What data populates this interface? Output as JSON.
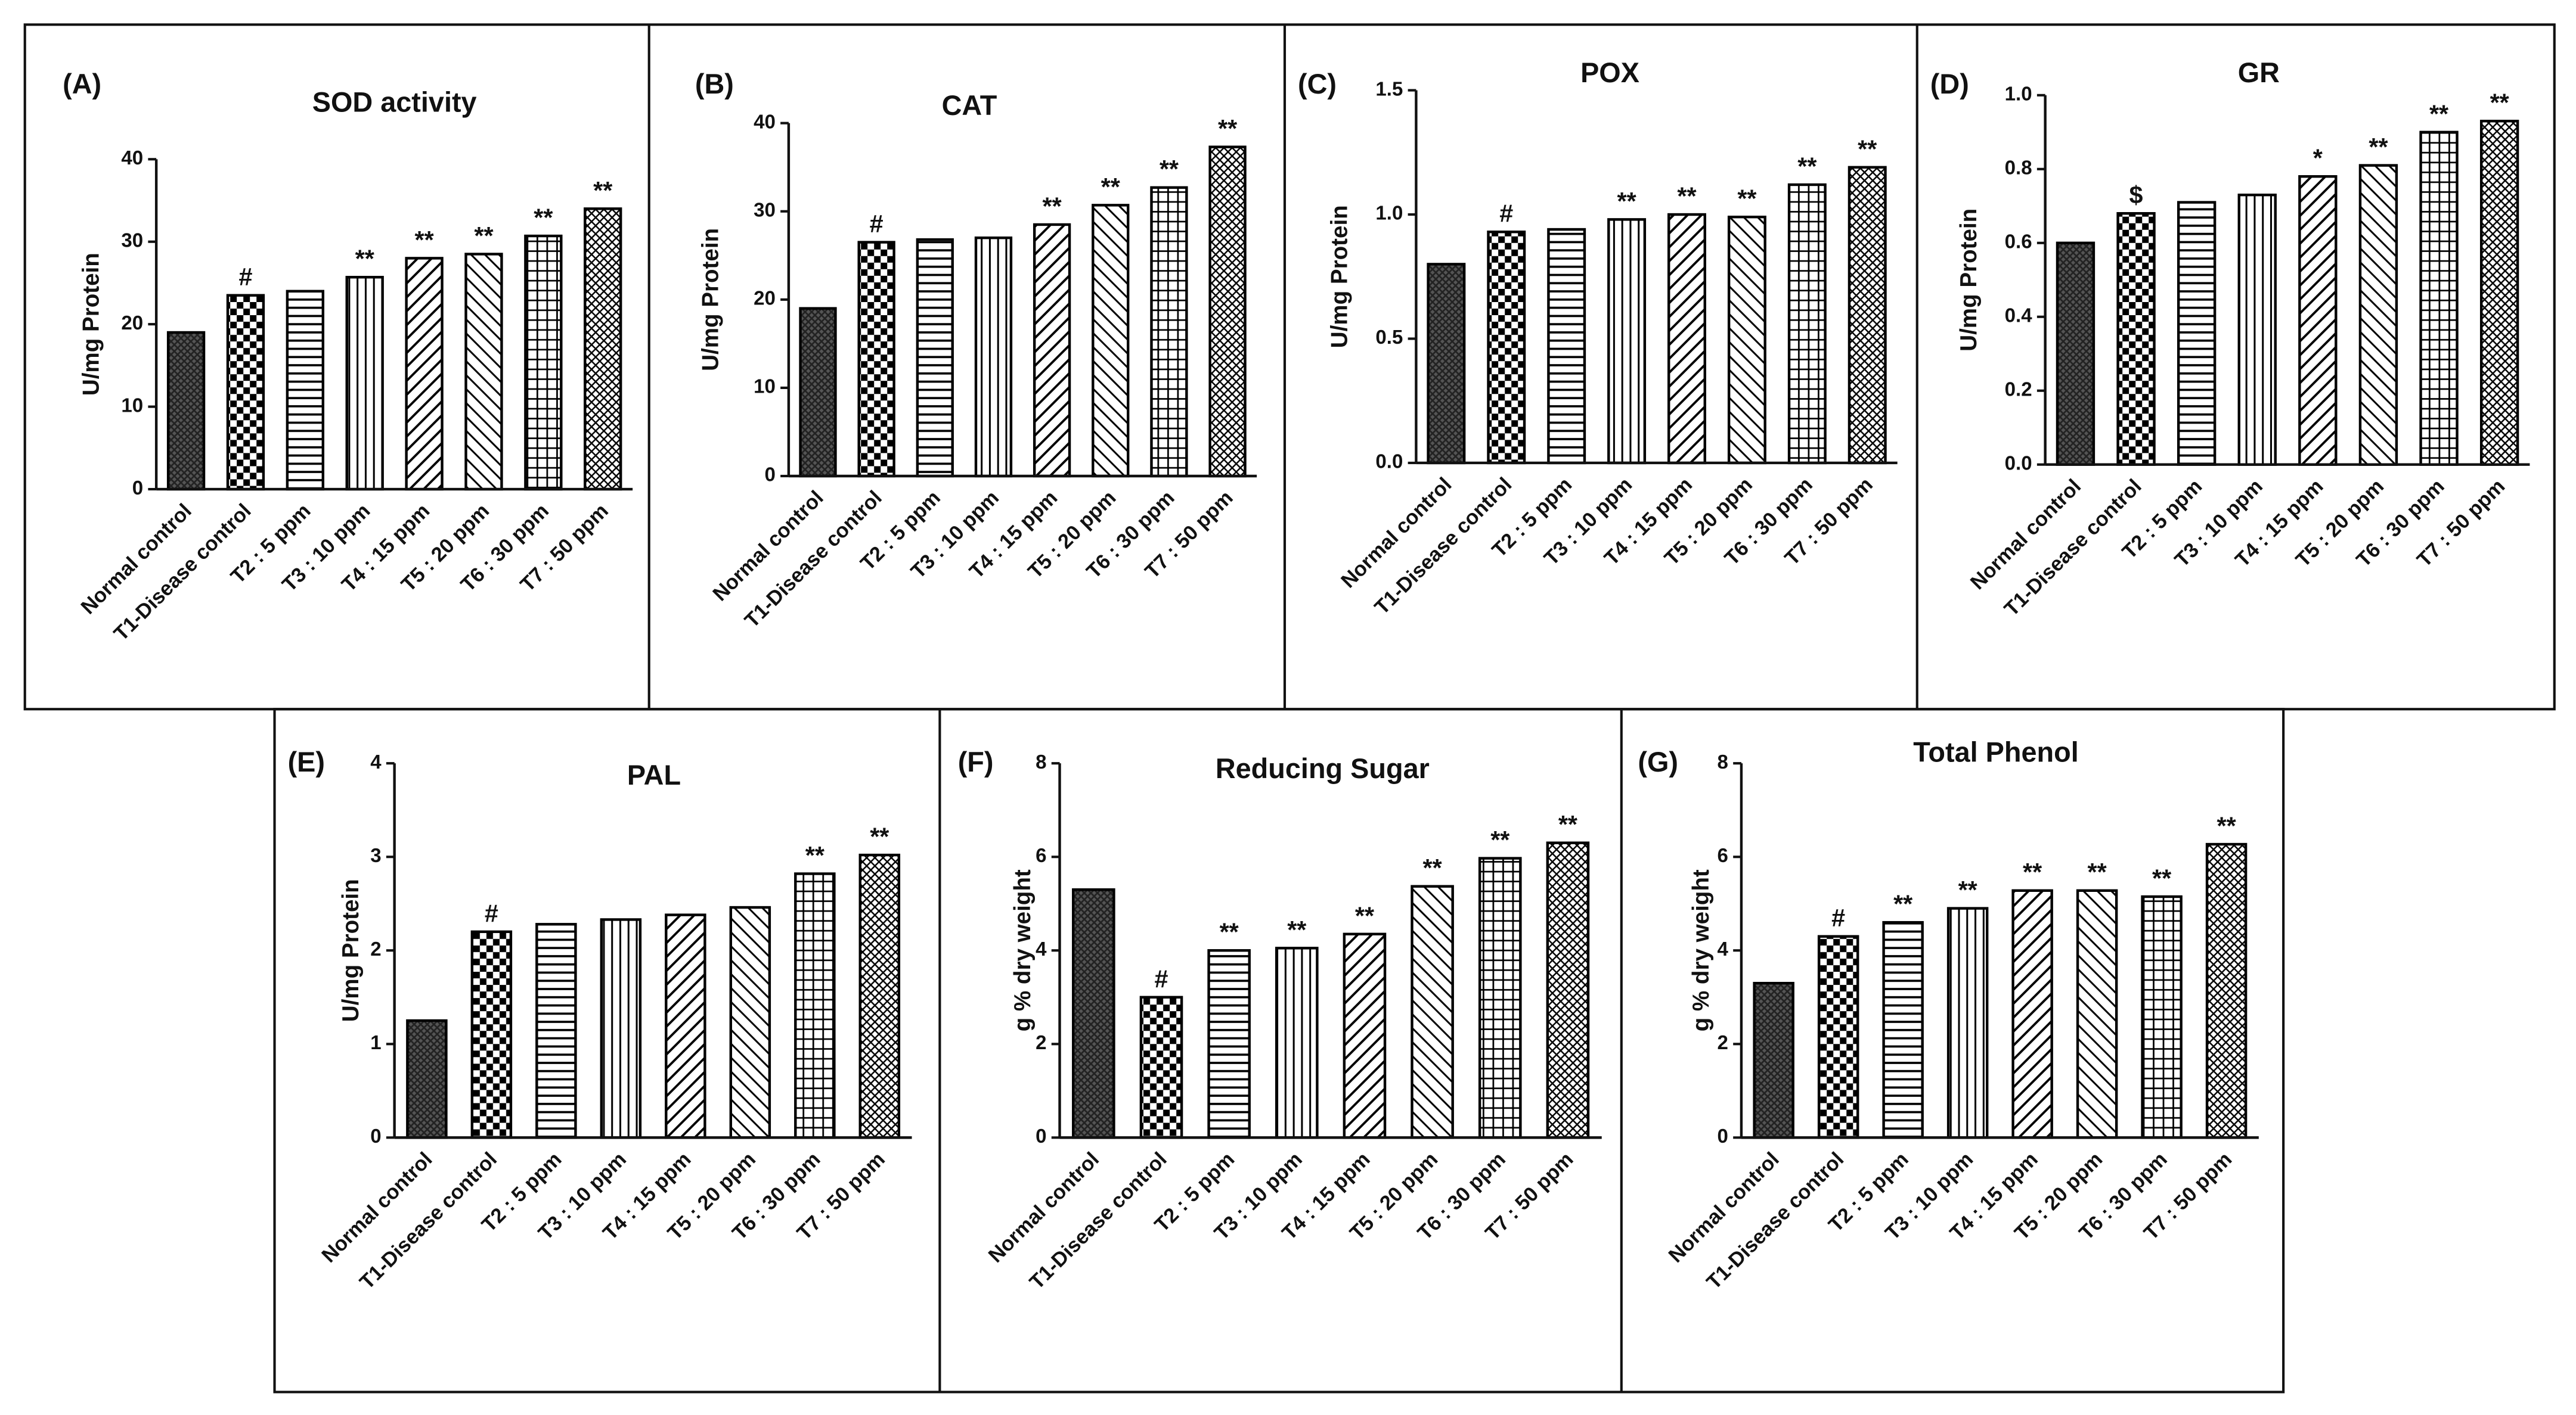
{
  "chart_data": [
    {
      "type": "bar",
      "panel": "(A)",
      "title": "SOD activity",
      "ylabel": "U/mg Protein",
      "categories": [
        "Normal control",
        "T1-Disease control",
        "T2 : 5 ppm",
        "T3 : 10 ppm",
        "T4 : 15 ppm",
        "T5 : 20 ppm",
        "T6 : 30 ppm",
        "T7 : 50 ppm"
      ],
      "values": [
        19,
        23.5,
        24,
        25.7,
        28,
        28.5,
        30.7,
        34
      ],
      "annotations": [
        null,
        "#",
        null,
        "**",
        "**",
        "**",
        "**",
        "**"
      ],
      "ylim": [
        0,
        40
      ],
      "yticks": [
        0,
        10,
        20,
        30,
        40
      ]
    },
    {
      "type": "bar",
      "panel": "(B)",
      "title": "CAT",
      "ylabel": "U/mg Protein",
      "categories": [
        "Normal control",
        "T1-Disease control",
        "T2 : 5 ppm",
        "T3 : 10 ppm",
        "T4 : 15 ppm",
        "T5 : 20 ppm",
        "T6 : 30 ppm",
        "T7 : 50 ppm"
      ],
      "values": [
        19,
        26.5,
        26.8,
        27,
        28.5,
        30.7,
        32.7,
        37.3
      ],
      "annotations": [
        null,
        "#",
        null,
        null,
        "**",
        "**",
        "**",
        "**"
      ],
      "ylim": [
        0,
        40
      ],
      "yticks": [
        0,
        10,
        20,
        30,
        40
      ]
    },
    {
      "type": "bar",
      "panel": "(C)",
      "title": "POX",
      "ylabel": "U/mg Protein",
      "categories": [
        "Normal control",
        "T1-Disease control",
        "T2 : 5 ppm",
        "T3 : 10 ppm",
        "T4 : 15 ppm",
        "T5 : 20 ppm",
        "T6 : 30 ppm",
        "T7 : 50 ppm"
      ],
      "values": [
        0.8,
        0.93,
        0.94,
        0.98,
        1.0,
        0.99,
        1.12,
        1.19
      ],
      "annotations": [
        null,
        "#",
        null,
        "**",
        "**",
        "**",
        "**",
        "**"
      ],
      "ylim": [
        0,
        1.5
      ],
      "yticks": [
        {
          "value": 0,
          "label": "0.0"
        },
        0.5,
        {
          "value": 1,
          "label": "1.0"
        },
        1.5
      ]
    },
    {
      "type": "bar",
      "panel": "(D)",
      "title": "GR",
      "ylabel": "U/mg Protein",
      "categories": [
        "Normal control",
        "T1-Disease control",
        "T2 : 5 ppm",
        "T3 : 10 ppm",
        "T4 : 15 ppm",
        "T5 : 20 ppm",
        "T6 : 30 ppm",
        "T7 : 50 ppm"
      ],
      "values": [
        0.6,
        0.68,
        0.71,
        0.73,
        0.78,
        0.81,
        0.9,
        0.93
      ],
      "annotations": [
        null,
        "$",
        null,
        null,
        "*",
        "**",
        "**",
        "**"
      ],
      "ylim": [
        0,
        1
      ],
      "yticks": [
        {
          "value": 0,
          "label": "0.0"
        },
        0.2,
        0.4,
        0.6,
        0.8,
        {
          "value": 1,
          "label": "1.0"
        }
      ]
    },
    {
      "type": "bar",
      "panel": "(E)",
      "title": "PAL",
      "ylabel": "U/mg Protein",
      "categories": [
        "Normal control",
        "T1-Disease control",
        "T2 : 5 ppm",
        "T3 : 10 ppm",
        "T4 : 15 ppm",
        "T5 : 20 ppm",
        "T6 : 30 ppm",
        "T7 : 50 ppm"
      ],
      "values": [
        1.25,
        2.2,
        2.28,
        2.33,
        2.38,
        2.46,
        2.82,
        3.02
      ],
      "annotations": [
        null,
        "#",
        null,
        null,
        null,
        null,
        "**",
        "**"
      ],
      "ylim": [
        0,
        4
      ],
      "yticks": [
        0,
        1,
        2,
        3,
        4
      ]
    },
    {
      "type": "bar",
      "panel": "(F)",
      "title": "Reducing Sugar",
      "ylabel": "g % dry weight",
      "categories": [
        "Normal control",
        "T1-Disease control",
        "T2 : 5 ppm",
        "T3 : 10 ppm",
        "T4 : 15 ppm",
        "T5 : 20 ppm",
        "T6 : 30 ppm",
        "T7 : 50 ppm"
      ],
      "values": [
        5.3,
        3.0,
        4.0,
        4.05,
        4.35,
        5.37,
        5.97,
        6.3
      ],
      "annotations": [
        null,
        "#",
        "**",
        "**",
        "**",
        "**",
        "**",
        "**"
      ],
      "ylim": [
        0,
        8
      ],
      "yticks": [
        0,
        2,
        4,
        6,
        8
      ]
    },
    {
      "type": "bar",
      "panel": "(G)",
      "title": "Total Phenol",
      "ylabel": "g % dry weight",
      "categories": [
        "Normal control",
        "T1-Disease control",
        "T2 : 5 ppm",
        "T3 : 10 ppm",
        "T4 : 15 ppm",
        "T5 : 20 ppm",
        "T6 : 30 ppm",
        "T7 : 50 ppm"
      ],
      "values": [
        3.3,
        4.3,
        4.6,
        4.9,
        5.28,
        5.28,
        5.15,
        6.27
      ],
      "annotations": [
        null,
        "#",
        "**",
        "**",
        "**",
        "**",
        "**",
        "**"
      ],
      "ylim": [
        0,
        8
      ],
      "yticks": [
        0,
        2,
        4,
        6,
        8
      ]
    }
  ]
}
